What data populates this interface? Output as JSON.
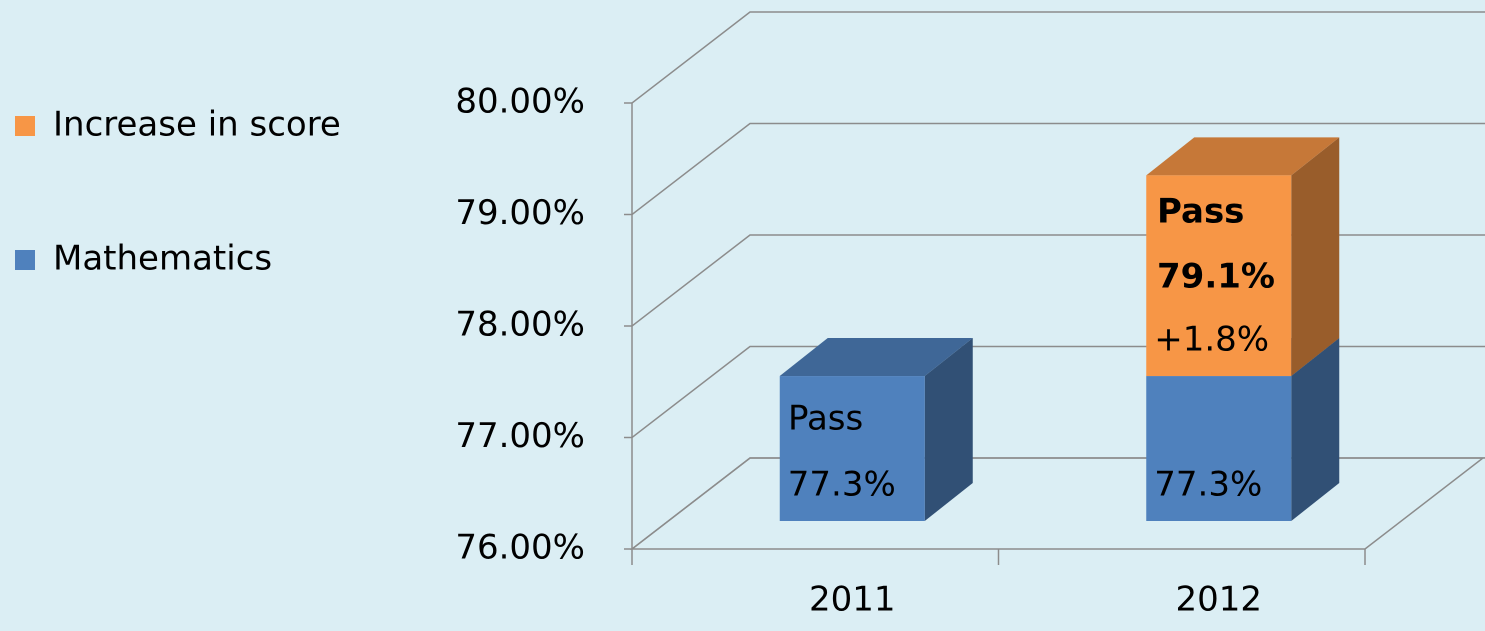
{
  "chart_data": {
    "type": "bar3d_stacked",
    "categories": [
      "2011",
      "2012"
    ],
    "series": [
      {
        "name": "Mathematics",
        "color": "#4f81bd",
        "values": [
          77.3,
          77.3
        ],
        "value_labels": [
          "77.3%",
          "77.3%"
        ]
      },
      {
        "name": "Increase in score",
        "color": "#f79646",
        "values": [
          null,
          1.8
        ],
        "value_labels": [
          null,
          "+1.8%"
        ]
      }
    ],
    "annotations": [
      "Pass",
      "Pass",
      "79.1%"
    ],
    "ylim": [
      76,
      80
    ],
    "yticks": [
      {
        "value": 76,
        "label": "76.00%"
      },
      {
        "value": 77,
        "label": "77.00%"
      },
      {
        "value": 78,
        "label": "78.00%"
      },
      {
        "value": 79,
        "label": "79.00%"
      },
      {
        "value": 80,
        "label": "80.00%"
      }
    ],
    "grid": true,
    "legend": "left"
  }
}
